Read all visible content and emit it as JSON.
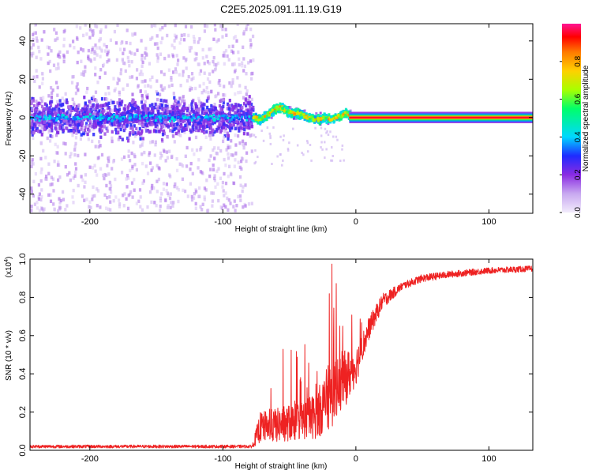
{
  "figure": {
    "title": "C2E5.2025.091.11.19.G19"
  },
  "chart_data": [
    {
      "type": "heatmap",
      "title": "C2E5.2025.091.11.19.G19",
      "xlabel": "Height of straight line (km)",
      "ylabel": "Frequency (Hz)",
      "xlim": [
        -245,
        133
      ],
      "ylim": [
        -50,
        49
      ],
      "xticks": [
        -200,
        -100,
        0,
        100
      ],
      "yticks": [
        -40,
        -20,
        0,
        20,
        40
      ],
      "colorbar": {
        "label": "Normalized spectral amplitude",
        "range": [
          0,
          1
        ],
        "ticks": [
          0.0,
          0.2,
          0.4,
          0.6,
          0.8
        ],
        "colors": [
          "#f2ecfc",
          "#8a2be2",
          "#1e2bff",
          "#00d8ff",
          "#00ff6a",
          "#a8ff00",
          "#ffd000",
          "#ff7a00",
          "#ff0000",
          "#ff1493"
        ]
      },
      "track": [
        {
          "x": -78,
          "f": 0
        },
        {
          "x": -73,
          "f": -1
        },
        {
          "x": -68,
          "f": 1
        },
        {
          "x": -64,
          "f": 3
        },
        {
          "x": -60,
          "f": 5
        },
        {
          "x": -56,
          "f": 5
        },
        {
          "x": -52,
          "f": 3
        },
        {
          "x": -48,
          "f": 2
        },
        {
          "x": -44,
          "f": 2
        },
        {
          "x": -40,
          "f": 1
        },
        {
          "x": -36,
          "f": 0
        },
        {
          "x": -32,
          "f": -1
        },
        {
          "x": -28,
          "f": -1
        },
        {
          "x": -24,
          "f": 0
        },
        {
          "x": -20,
          "f": -1
        },
        {
          "x": -16,
          "f": 0
        },
        {
          "x": -12,
          "f": 1
        },
        {
          "x": -8,
          "f": 2
        },
        {
          "x": -5,
          "f": 1
        },
        {
          "x": 133,
          "f": 0
        }
      ]
    },
    {
      "type": "line",
      "xlabel": "Height of straight line (km)",
      "ylabel": "SNR (10 * v/v)",
      "multiplier_label": "(x10",
      "multiplier_exp": "4",
      "xlim": [
        -245,
        133
      ],
      "ylim": [
        0,
        1.0
      ],
      "xticks": [
        -200,
        -100,
        0,
        100
      ],
      "yticks": [
        0.0,
        0.2,
        0.4,
        0.6,
        0.8,
        1.0
      ],
      "series": [
        {
          "name": "SNR",
          "color": "#ee2222",
          "x": [
            -245,
            -200,
            -150,
            -100,
            -78,
            -72,
            -60,
            -45,
            -30,
            -20,
            -10,
            0,
            10,
            20,
            35,
            50,
            70,
            100,
            133
          ],
          "y": [
            0.02,
            0.02,
            0.02,
            0.02,
            0.02,
            0.12,
            0.13,
            0.15,
            0.18,
            0.28,
            0.36,
            0.44,
            0.64,
            0.78,
            0.86,
            0.9,
            0.92,
            0.94,
            0.95
          ],
          "noise": [
            0.008,
            0.008,
            0.008,
            0.008,
            0.008,
            0.08,
            0.09,
            0.1,
            0.12,
            0.18,
            0.16,
            0.1,
            0.06,
            0.04,
            0.02,
            0.02,
            0.018,
            0.016,
            0.016
          ]
        }
      ]
    }
  ]
}
